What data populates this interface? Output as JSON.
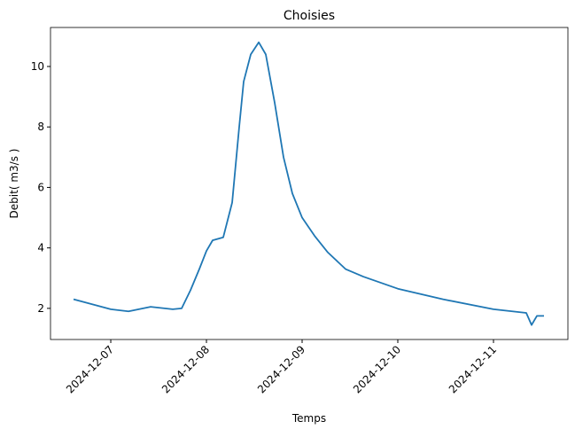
{
  "chart_data": {
    "type": "line",
    "title": "Choisies",
    "x_label": "Temps",
    "y_label": "Debit( m3/s )",
    "x": [
      "2024-12-06T14:40",
      "2024-12-07T00:00",
      "2024-12-07T04:27",
      "2024-12-07T10:00",
      "2024-12-07T15:33",
      "2024-12-07T17:47",
      "2024-12-07T20:00",
      "2024-12-07T22:13",
      "2024-12-08T00:00",
      "2024-12-08T01:33",
      "2024-12-08T04:13",
      "2024-12-08T06:27",
      "2024-12-08T08:13",
      "2024-12-08T09:20",
      "2024-12-08T11:07",
      "2024-12-08T13:07",
      "2024-12-08T14:53",
      "2024-12-08T17:07",
      "2024-12-08T19:20",
      "2024-12-08T21:33",
      "2024-12-09T00:00",
      "2024-12-09T03:07",
      "2024-12-09T06:27",
      "2024-12-09T10:53",
      "2024-12-09T15:20",
      "2024-12-10T00:00",
      "2024-12-10T11:20",
      "2024-12-11T00:00",
      "2024-12-11T08:13",
      "2024-12-11T09:33",
      "2024-12-11T10:53",
      "2024-12-11T12:40"
    ],
    "series": [
      {
        "name": "Debit",
        "color": "#1f77b4",
        "values": [
          2.3,
          1.97,
          1.9,
          2.05,
          1.97,
          2.0,
          2.6,
          3.3,
          3.9,
          4.25,
          4.35,
          5.5,
          8.0,
          9.5,
          10.4,
          10.8,
          10.4,
          8.8,
          7.0,
          5.8,
          5.0,
          4.4,
          3.85,
          3.3,
          3.05,
          2.65,
          2.3,
          1.97,
          1.85,
          1.45,
          1.75,
          1.75
        ]
      }
    ],
    "xlim": [
      "2024-12-06T08:53",
      "2024-12-11T18:40"
    ],
    "xticks": [
      "2024-12-07",
      "2024-12-08",
      "2024-12-09",
      "2024-12-10",
      "2024-12-11"
    ],
    "ylim": [
      0.97,
      11.29
    ],
    "yticks": [
      2,
      4,
      6,
      8,
      10
    ],
    "grid": false
  }
}
